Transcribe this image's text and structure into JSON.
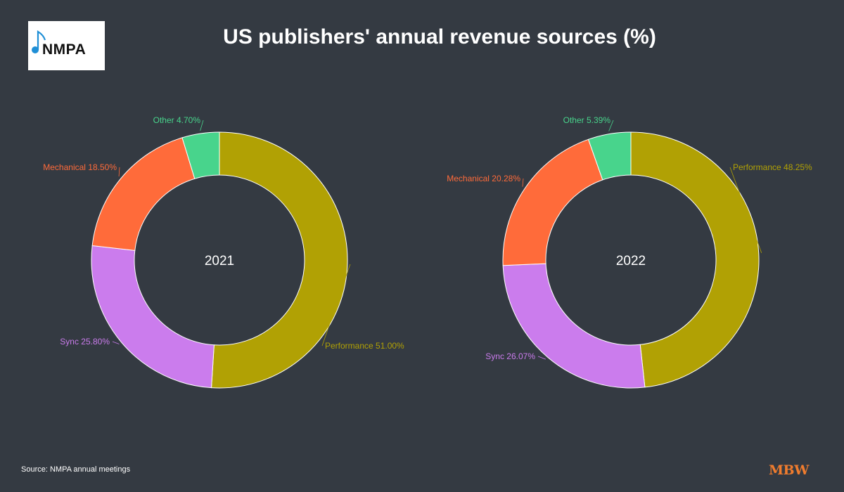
{
  "title": "US publishers' annual revenue sources (%)",
  "logo": {
    "text": "NMPA",
    "icon": "music-note-icon",
    "color": "#1f8fd6"
  },
  "source": "Source: NMPA annual meetings",
  "brand": "MBW",
  "colors": {
    "background": "#343a42",
    "Performance": "#b1a104",
    "Sync": "#cb7ced",
    "Mechanical": "#ff6b3a",
    "Other": "#48d48c"
  },
  "chart_data": [
    {
      "type": "pie",
      "center_label": "2021",
      "slices": [
        {
          "name": "Performance",
          "value": 51.0,
          "label": "Performance 51.00%"
        },
        {
          "name": "Sync",
          "value": 25.8,
          "label": "Sync 25.80%"
        },
        {
          "name": "Mechanical",
          "value": 18.5,
          "label": "Mechanical 18.50%"
        },
        {
          "name": "Other",
          "value": 4.7,
          "label": "Other 4.70%"
        }
      ]
    },
    {
      "type": "pie",
      "center_label": "2022",
      "slices": [
        {
          "name": "Performance",
          "value": 48.25,
          "label": "Performance 48.25%"
        },
        {
          "name": "Sync",
          "value": 26.07,
          "label": "Sync 26.07%"
        },
        {
          "name": "Mechanical",
          "value": 20.28,
          "label": "Mechanical 20.28%"
        },
        {
          "name": "Other",
          "value": 5.39,
          "label": "Other 5.39%"
        }
      ]
    }
  ]
}
